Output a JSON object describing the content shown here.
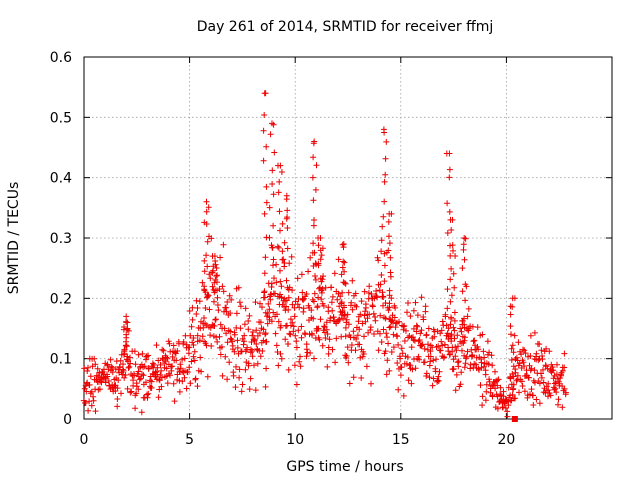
{
  "chart_data": {
    "type": "scatter",
    "title": "Day 261 of 2014, SRMTID for receiver ffmj",
    "xlabel": "GPS time / hours",
    "ylabel": "SRMTID / TECUs",
    "xlim": [
      0,
      25
    ],
    "ylim": [
      0,
      0.6
    ],
    "xticks": [
      0,
      5,
      10,
      15,
      20
    ],
    "xtick_labels": [
      "0",
      "5",
      "10",
      "15",
      "20"
    ],
    "yticks": [
      0,
      0.1,
      0.2,
      0.3,
      0.4,
      0.5,
      0.6
    ],
    "ytick_labels": [
      "0",
      "0.1",
      "0.2",
      "0.3",
      "0.4",
      "0.5",
      "0.6"
    ],
    "grid": true,
    "marker": "+",
    "color": "#ee0000",
    "series": [
      {
        "name": "SRMTID",
        "x_start": 0,
        "x_step": 0.04,
        "envelope": [
          [
            0.0,
            0.06
          ],
          [
            0.5,
            0.06
          ],
          [
            1.0,
            0.07
          ],
          [
            1.5,
            0.05
          ],
          [
            2.0,
            0.09
          ],
          [
            2.5,
            0.07
          ],
          [
            3.0,
            0.08
          ],
          [
            3.5,
            0.07
          ],
          [
            4.0,
            0.09
          ],
          [
            4.5,
            0.09
          ],
          [
            5.0,
            0.11
          ],
          [
            5.5,
            0.15
          ],
          [
            6.0,
            0.2
          ],
          [
            6.5,
            0.18
          ],
          [
            7.0,
            0.14
          ],
          [
            7.5,
            0.13
          ],
          [
            8.0,
            0.12
          ],
          [
            8.5,
            0.14
          ],
          [
            9.0,
            0.2
          ],
          [
            9.5,
            0.18
          ],
          [
            10.0,
            0.16
          ],
          [
            10.5,
            0.18
          ],
          [
            11.0,
            0.2
          ],
          [
            11.5,
            0.18
          ],
          [
            12.0,
            0.16
          ],
          [
            12.5,
            0.15
          ],
          [
            13.0,
            0.14
          ],
          [
            13.5,
            0.15
          ],
          [
            14.0,
            0.18
          ],
          [
            14.5,
            0.16
          ],
          [
            15.0,
            0.12
          ],
          [
            15.5,
            0.13
          ],
          [
            16.0,
            0.14
          ],
          [
            16.5,
            0.11
          ],
          [
            17.0,
            0.13
          ],
          [
            17.5,
            0.11
          ],
          [
            18.0,
            0.12
          ],
          [
            18.5,
            0.1
          ],
          [
            19.0,
            0.09
          ],
          [
            19.5,
            0.05
          ],
          [
            20.0,
            0.02
          ],
          [
            20.5,
            0.09
          ],
          [
            21.0,
            0.09
          ],
          [
            21.5,
            0.08
          ],
          [
            22.0,
            0.07
          ],
          [
            22.5,
            0.06
          ],
          [
            22.8,
            0.06
          ]
        ],
        "bursts": [
          [
            2.0,
            0.17
          ],
          [
            5.8,
            0.36
          ],
          [
            6.2,
            0.27
          ],
          [
            8.6,
            0.54
          ],
          [
            8.9,
            0.49
          ],
          [
            9.3,
            0.42
          ],
          [
            9.6,
            0.37
          ],
          [
            10.9,
            0.46
          ],
          [
            11.2,
            0.3
          ],
          [
            12.3,
            0.29
          ],
          [
            14.2,
            0.48
          ],
          [
            14.45,
            0.34
          ],
          [
            17.3,
            0.44
          ],
          [
            17.45,
            0.33
          ],
          [
            18.0,
            0.3
          ],
          [
            20.3,
            0.2
          ]
        ],
        "outliers": [
          [
            20.4,
            0.0
          ]
        ]
      }
    ]
  }
}
